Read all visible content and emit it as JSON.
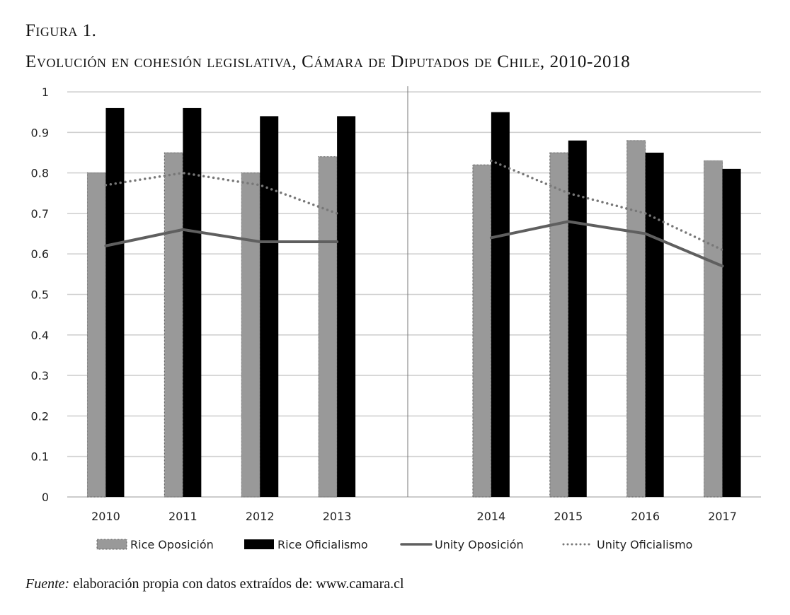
{
  "figure_label": "Figura 1.",
  "chart_data": {
    "type": "bar",
    "title": "Evolución en cohesión legislativa, Cámara de Diputados de Chile, 2010-2018",
    "categories": [
      "2010",
      "2011",
      "2012",
      "2013",
      "",
      "2014",
      "2015",
      "2016",
      "2017"
    ],
    "ylim": [
      0,
      1
    ],
    "yticks": [
      "0",
      "0.1",
      "0.2",
      "0.3",
      "0.4",
      "0.5",
      "0.6",
      "0.7",
      "0.8",
      "0.9",
      "1"
    ],
    "grid": true,
    "legend_position": "bottom",
    "series": [
      {
        "name": "Rice Oposición",
        "kind": "bar",
        "color": "#999999",
        "values": [
          0.8,
          0.85,
          0.8,
          0.84,
          null,
          0.82,
          0.85,
          0.88,
          0.83
        ]
      },
      {
        "name": "Rice Oficialismo",
        "kind": "bar",
        "color": "#000000",
        "values": [
          0.96,
          0.96,
          0.94,
          0.94,
          null,
          0.95,
          0.88,
          0.85,
          0.81
        ]
      },
      {
        "name": "Unity Oposición",
        "kind": "line",
        "color": "#5f5f5f",
        "values": [
          0.62,
          0.66,
          0.63,
          0.63,
          null,
          0.64,
          0.68,
          0.65,
          0.57
        ]
      },
      {
        "name": "Unity Oficialismo",
        "kind": "dotted-line",
        "color": "#777777",
        "values": [
          0.77,
          0.8,
          0.77,
          0.7,
          null,
          0.83,
          0.75,
          0.7,
          0.61
        ]
      }
    ]
  },
  "source": {
    "label": "Fuente:",
    "text": " elaboración propia con datos extraídos de: www.camara.cl"
  }
}
